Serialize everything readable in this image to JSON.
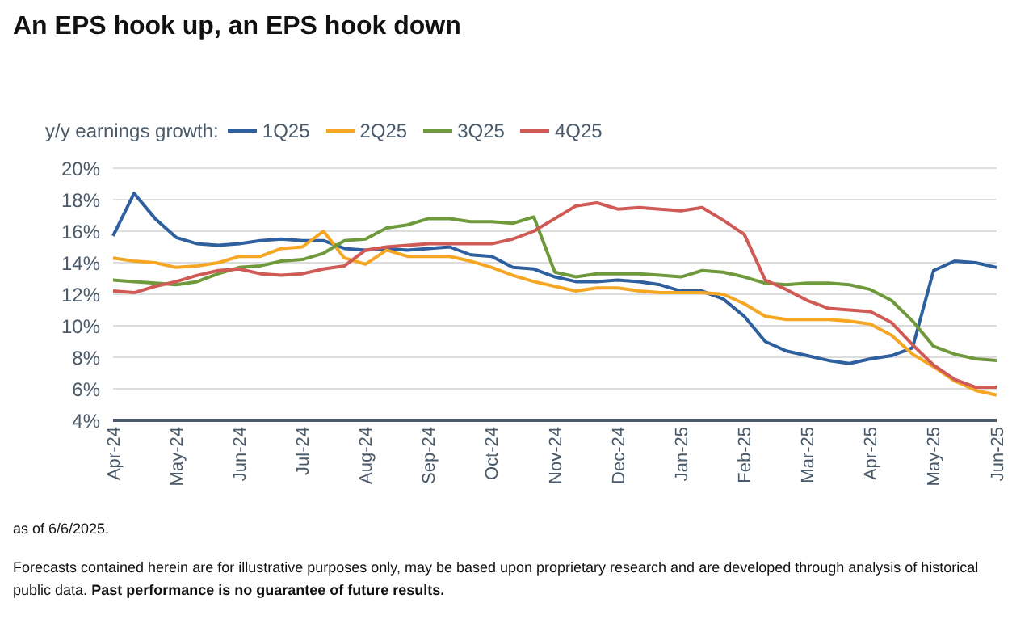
{
  "chart_data": {
    "type": "line",
    "title": "An EPS hook up, an EPS hook down",
    "subtitle": "y/y earnings growth:",
    "categories": [
      "Apr-24",
      null,
      null,
      "May-24",
      null,
      null,
      "Jun-24",
      null,
      null,
      "Jul-24",
      null,
      null,
      "Aug-24",
      null,
      null,
      "Sep-24",
      null,
      null,
      "Oct-24",
      null,
      null,
      "Nov-24",
      null,
      null,
      "Dec-24",
      null,
      null,
      "Jan-25",
      null,
      null,
      "Feb-25",
      null,
      null,
      "Mar-25",
      null,
      null,
      "Apr-25",
      null,
      null,
      "May-25",
      null,
      null,
      "Jun-25"
    ],
    "series": [
      {
        "name": "1Q25",
        "color": "#2e5f9e",
        "values": [
          15.7,
          18.4,
          16.8,
          15.6,
          15.2,
          15.1,
          15.2,
          15.4,
          15.5,
          15.4,
          15.4,
          14.9,
          14.8,
          14.9,
          14.8,
          14.9,
          15.0,
          14.5,
          14.4,
          13.7,
          13.6,
          13.1,
          12.8,
          12.8,
          12.9,
          12.8,
          12.6,
          12.2,
          12.2,
          11.7,
          10.6,
          9.0,
          8.4,
          8.1,
          7.8,
          7.6,
          7.9,
          8.1,
          8.6,
          13.5,
          14.1,
          14.0,
          13.7
        ]
      },
      {
        "name": "2Q25",
        "color": "#f5a623",
        "values": [
          14.3,
          14.1,
          14.0,
          13.7,
          13.8,
          14.0,
          14.4,
          14.4,
          14.9,
          15.0,
          16.0,
          14.3,
          13.9,
          14.8,
          14.4,
          14.4,
          14.4,
          14.1,
          13.7,
          13.2,
          12.8,
          12.5,
          12.2,
          12.4,
          12.4,
          12.2,
          12.1,
          12.1,
          12.1,
          12.0,
          11.4,
          10.6,
          10.4,
          10.4,
          10.4,
          10.3,
          10.1,
          9.4,
          8.2,
          7.4,
          6.5,
          5.9,
          5.6
        ]
      },
      {
        "name": "3Q25",
        "color": "#6e9a3c",
        "values": [
          12.9,
          12.8,
          12.7,
          12.6,
          12.8,
          13.3,
          13.7,
          13.8,
          14.1,
          14.2,
          14.6,
          15.4,
          15.5,
          16.2,
          16.4,
          16.8,
          16.8,
          16.6,
          16.6,
          16.5,
          16.9,
          13.4,
          13.1,
          13.3,
          13.3,
          13.3,
          13.2,
          13.1,
          13.5,
          13.4,
          13.1,
          12.7,
          12.6,
          12.7,
          12.7,
          12.6,
          12.3,
          11.6,
          10.3,
          8.7,
          8.2,
          7.9,
          7.8
        ]
      },
      {
        "name": "4Q25",
        "color": "#d05a55",
        "values": [
          12.2,
          12.1,
          12.5,
          12.8,
          13.2,
          13.5,
          13.6,
          13.3,
          13.2,
          13.3,
          13.6,
          13.8,
          14.8,
          15.0,
          15.1,
          15.2,
          15.2,
          15.2,
          15.2,
          15.5,
          16.0,
          16.8,
          17.6,
          17.8,
          17.4,
          17.5,
          17.4,
          17.3,
          17.5,
          16.7,
          15.8,
          12.9,
          12.3,
          11.6,
          11.1,
          11.0,
          10.9,
          10.2,
          8.8,
          7.5,
          6.6,
          6.1,
          6.1
        ]
      }
    ],
    "ylim": [
      4,
      20
    ],
    "yticks": [
      {
        "value": 4,
        "label": "4%"
      },
      {
        "value": 6,
        "label": "6%"
      },
      {
        "value": 8,
        "label": "8%"
      },
      {
        "value": 10,
        "label": "10%"
      },
      {
        "value": 12,
        "label": "12%"
      },
      {
        "value": 14,
        "label": "14%"
      },
      {
        "value": 16,
        "label": "16%"
      },
      {
        "value": 18,
        "label": "18%"
      },
      {
        "value": 20,
        "label": "20%"
      }
    ],
    "grid": "y",
    "legend": "top left",
    "marker": "none",
    "line_style": "solid",
    "annotations": [
      "as of 6/6/2025.",
      "Forecasts contained herein are for illustrative purposes only, may be based upon proprietary research and are developed through analysis of historical public data.",
      "Past performance is no guarantee of future results."
    ]
  }
}
